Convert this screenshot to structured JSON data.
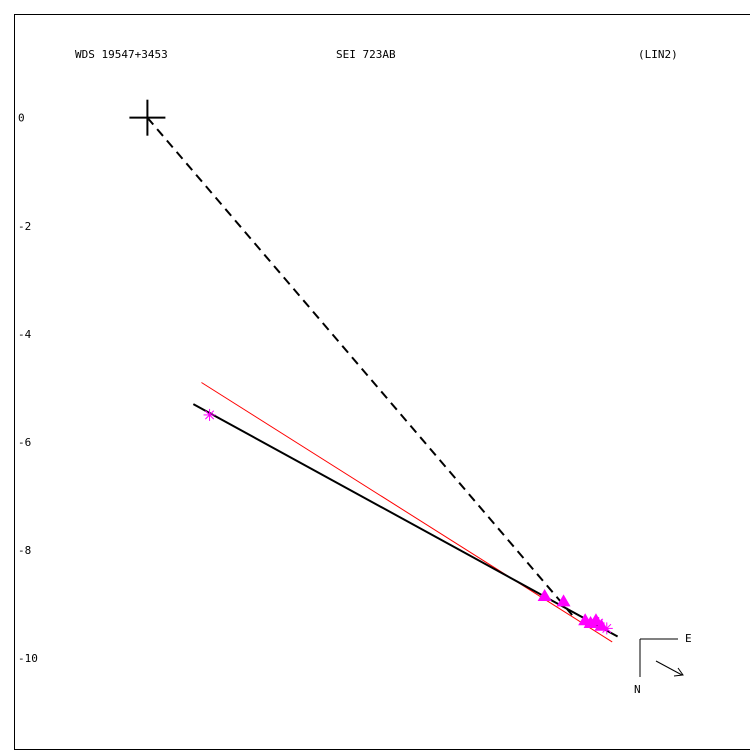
{
  "header": {
    "left": "WDS 19547+3453",
    "center": "SEI 723AB",
    "right": "(LIN2)"
  },
  "compass": {
    "east": "E",
    "north": "N"
  },
  "colors": {
    "frame": "#000000",
    "orbit_fit": "#000000",
    "alt_fit": "#ff0000",
    "observations": "#ff00ff"
  },
  "chart_data": {
    "type": "scatter",
    "ylim": [
      -11.7,
      1.9
    ],
    "xlim": [
      -2.45,
      11.15
    ],
    "yticks": [
      0,
      -2,
      -4,
      -6,
      -8,
      -10
    ],
    "ytick_labels": [
      "0",
      "-2",
      "-4",
      "-6",
      "-8",
      "-10"
    ],
    "primary_star": {
      "x": 0,
      "y": 0
    },
    "black_fit_line": [
      [
        0.85,
        -5.3
      ],
      [
        8.7,
        -9.6
      ]
    ],
    "red_fit_line": [
      [
        1.0,
        -4.9
      ],
      [
        8.6,
        -9.7
      ]
    ],
    "dashed_line": [
      [
        0,
        0
      ],
      [
        7.9,
        -9.25
      ]
    ],
    "observations": [
      {
        "marker": "asterisk",
        "x": 1.15,
        "y": -5.5
      },
      {
        "marker": "triangle",
        "x": 7.35,
        "y": -8.85
      },
      {
        "marker": "triangle",
        "x": 7.7,
        "y": -8.95
      },
      {
        "marker": "triangle",
        "x": 8.1,
        "y": -9.3
      },
      {
        "marker": "triangle",
        "x": 8.2,
        "y": -9.35
      },
      {
        "marker": "triangle",
        "x": 8.3,
        "y": -9.3
      },
      {
        "marker": "triangle",
        "x": 8.4,
        "y": -9.4
      },
      {
        "marker": "asterisk",
        "x": 8.35,
        "y": -9.35
      },
      {
        "marker": "asterisk",
        "x": 8.5,
        "y": -9.45
      }
    ]
  }
}
